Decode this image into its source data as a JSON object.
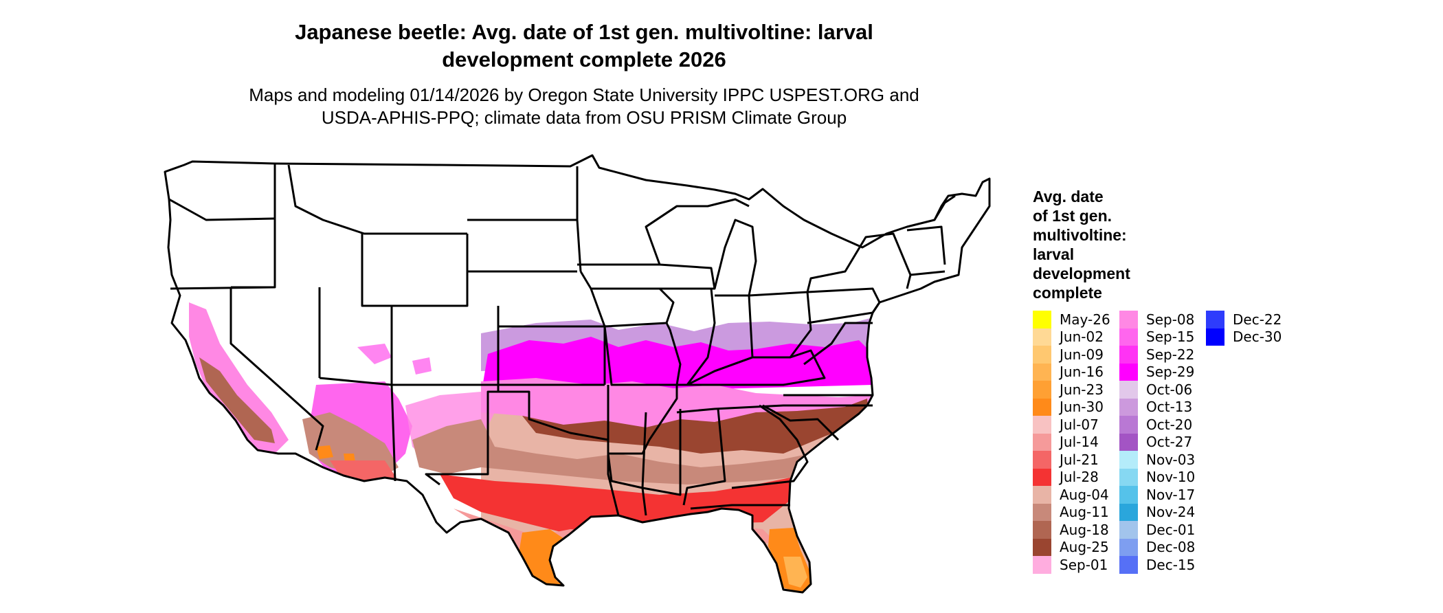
{
  "title_line1": "Japanese beetle: Avg. date of 1st gen. multivoltine: larval",
  "title_line2": "development complete 2026",
  "subtitle_line1": "Maps and modeling 01/14/2026 by Oregon State University IPPC USPEST.ORG and",
  "subtitle_line2": "USDA-APHIS-PPQ; climate data from OSU PRISM Climate Group",
  "legend": {
    "title_lines": [
      "Avg. date",
      "of 1st gen.",
      "multivoltine:",
      "larval",
      "development",
      "complete"
    ],
    "items": [
      {
        "label": "May-26",
        "color": "#ffff00"
      },
      {
        "label": "Jun-02",
        "color": "#ffd995"
      },
      {
        "label": "Jun-09",
        "color": "#ffc870"
      },
      {
        "label": "Jun-16",
        "color": "#ffb452"
      },
      {
        "label": "Jun-23",
        "color": "#ffa033"
      },
      {
        "label": "Jun-30",
        "color": "#ff8a19"
      },
      {
        "label": "Jul-07",
        "color": "#f8c2c2"
      },
      {
        "label": "Jul-14",
        "color": "#f59a9a"
      },
      {
        "label": "Jul-21",
        "color": "#f46666"
      },
      {
        "label": "Jul-28",
        "color": "#f43333"
      },
      {
        "label": "Aug-04",
        "color": "#e8b4a6"
      },
      {
        "label": "Aug-11",
        "color": "#c8897a"
      },
      {
        "label": "Aug-18",
        "color": "#b06652"
      },
      {
        "label": "Aug-25",
        "color": "#9a4530"
      },
      {
        "label": "Sep-01",
        "color": "#ffaddf"
      },
      {
        "label": "Sep-08",
        "color": "#ff88e4"
      },
      {
        "label": "Sep-15",
        "color": "#ff66ee"
      },
      {
        "label": "Sep-22",
        "color": "#ff33f4"
      },
      {
        "label": "Sep-29",
        "color": "#ff00ff"
      },
      {
        "label": "Oct-06",
        "color": "#e2c8ea"
      },
      {
        "label": "Oct-13",
        "color": "#cc99dd"
      },
      {
        "label": "Oct-20",
        "color": "#b978d4"
      },
      {
        "label": "Oct-27",
        "color": "#a354c4"
      },
      {
        "label": "Nov-03",
        "color": "#b4ecfa"
      },
      {
        "label": "Nov-10",
        "color": "#86d8f2"
      },
      {
        "label": "Nov-17",
        "color": "#55c2ea"
      },
      {
        "label": "Nov-24",
        "color": "#2aa6dc"
      },
      {
        "label": "Dec-01",
        "color": "#a2c4ec"
      },
      {
        "label": "Dec-08",
        "color": "#7e9ef0"
      },
      {
        "label": "Dec-15",
        "color": "#5670f6"
      },
      {
        "label": "Dec-22",
        "color": "#2e3cfc"
      },
      {
        "label": "Dec-30",
        "color": "#0000ff"
      }
    ]
  }
}
